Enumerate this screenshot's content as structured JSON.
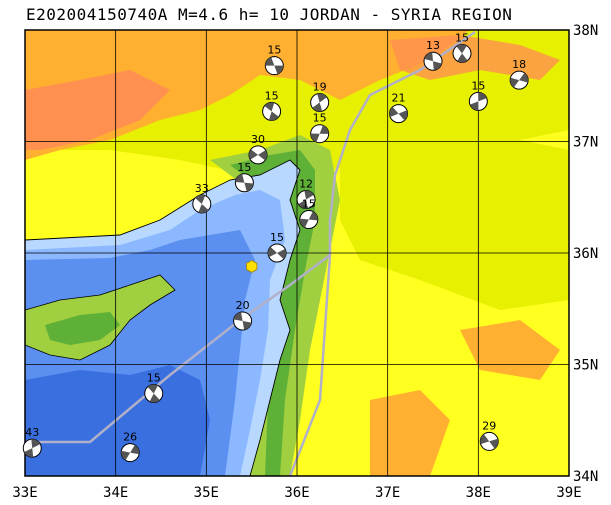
{
  "title": "E202004150740A M=4.6 h= 10 JORDAN - SYRIA REGION",
  "x_ticks": [
    "33E",
    "34E",
    "35E",
    "36E",
    "37E",
    "38E",
    "39E"
  ],
  "y_ticks": [
    "38N",
    "37N",
    "36N",
    "35N",
    "34N"
  ],
  "colors": {
    "deep_sea": "#3a6fe0",
    "mid_sea": "#5b8ff0",
    "shallow_sea": "#8cb8ff",
    "coast_shelf": "#b8d8ff",
    "lowland": "#5fb036",
    "plain": "#a0d040",
    "plateau": "#e6f000",
    "highland": "#ffff20",
    "mountain": "#ffb030",
    "peak": "#ff9050",
    "grid": "#000000",
    "plate_boundary": "#b0b0c8",
    "epicenter": "#ffe000"
  },
  "events": [
    {
      "label": "15",
      "lon": 35.75,
      "lat": 37.68
    },
    {
      "label": "15",
      "lon": 35.72,
      "lat": 37.27
    },
    {
      "label": "19",
      "lon": 36.25,
      "lat": 37.35
    },
    {
      "label": "15",
      "lon": 36.25,
      "lat": 37.07
    },
    {
      "label": "30",
      "lon": 35.57,
      "lat": 36.88
    },
    {
      "label": "15",
      "lon": 35.42,
      "lat": 36.63
    },
    {
      "label": "33",
      "lon": 34.95,
      "lat": 36.44
    },
    {
      "label": "12",
      "lon": 36.1,
      "lat": 36.48
    },
    {
      "label": "15",
      "lon": 36.13,
      "lat": 36.3
    },
    {
      "label": "15",
      "lon": 35.78,
      "lat": 36.0
    },
    {
      "label": "20",
      "lon": 35.4,
      "lat": 35.39
    },
    {
      "label": "15",
      "lon": 34.42,
      "lat": 34.74
    },
    {
      "label": "43",
      "lon": 33.08,
      "lat": 34.25
    },
    {
      "label": "26",
      "lon": 34.16,
      "lat": 34.21
    },
    {
      "label": "21",
      "lon": 37.12,
      "lat": 37.25
    },
    {
      "label": "13",
      "lon": 37.5,
      "lat": 37.72
    },
    {
      "label": "15",
      "lon": 37.82,
      "lat": 37.79
    },
    {
      "label": "15",
      "lon": 38.0,
      "lat": 37.36
    },
    {
      "label": "18",
      "lon": 38.45,
      "lat": 37.55
    },
    {
      "label": "29",
      "lon": 38.12,
      "lat": 34.31
    }
  ],
  "epicenter": {
    "lon": 35.5,
    "lat": 35.88
  }
}
